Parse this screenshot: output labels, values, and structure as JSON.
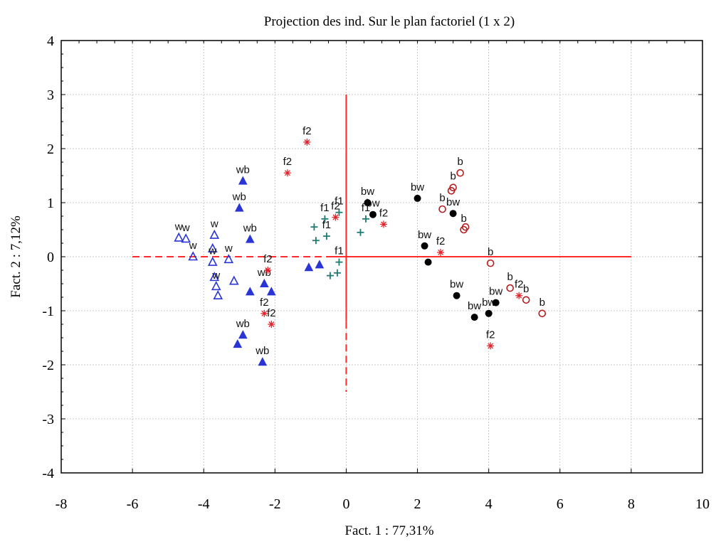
{
  "chart_data": {
    "type": "scatter",
    "title": "Projection des ind. Sur le plan factoriel (1 x 2)",
    "xlabel": "Fact. 1 : 77,31%",
    "ylabel": "Fact. 2 : 7,12%",
    "xlim": [
      -8,
      10
    ],
    "ylim": [
      -4,
      4
    ],
    "x_ticks": [
      "-8",
      "-6",
      "-4",
      "-2",
      "0",
      "2",
      "4",
      "6",
      "8",
      "10"
    ],
    "y_ticks": [
      "4",
      "3",
      "2",
      "1",
      "0",
      "-1",
      "-2",
      "-3",
      "-4"
    ],
    "grid": true,
    "legend": "none",
    "reference_lines": {
      "horizontal": {
        "y": 0,
        "x_from": -6,
        "x_to": 8,
        "dashed_left_of": -0.5,
        "color": "#ff2a2a"
      },
      "vertical": {
        "x": 0,
        "y_from": -2.5,
        "y_to": 3,
        "dashed_below": -1.2,
        "color": "#ff2a2a"
      }
    },
    "series": [
      {
        "marker": "triangle-outline",
        "color": "#2a35d6",
        "points": [
          {
            "x": -4.7,
            "y": 0.35,
            "label": "w"
          },
          {
            "x": -4.5,
            "y": 0.33,
            "label": "w"
          },
          {
            "x": -4.3,
            "y": 0.0,
            "label": "w"
          },
          {
            "x": -3.7,
            "y": 0.4,
            "label": "w"
          },
          {
            "x": -3.75,
            "y": 0.15,
            "label": ""
          },
          {
            "x": -3.75,
            "y": -0.1,
            "label": "w"
          },
          {
            "x": -3.3,
            "y": -0.05,
            "label": "w"
          },
          {
            "x": -3.7,
            "y": -0.38,
            "label": ""
          },
          {
            "x": -3.65,
            "y": -0.55,
            "label": "w"
          },
          {
            "x": -3.6,
            "y": -0.72,
            "label": ""
          },
          {
            "x": -3.15,
            "y": -0.45,
            "label": ""
          }
        ]
      },
      {
        "marker": "triangle-filled",
        "color": "#2a35d6",
        "points": [
          {
            "x": -2.9,
            "y": 1.4,
            "label": "wb"
          },
          {
            "x": -3.0,
            "y": 0.9,
            "label": "wb"
          },
          {
            "x": -2.7,
            "y": 0.32,
            "label": "wb"
          },
          {
            "x": -2.3,
            "y": -0.5,
            "label": "wb"
          },
          {
            "x": -2.7,
            "y": -0.65,
            "label": ""
          },
          {
            "x": -2.1,
            "y": -0.65,
            "label": ""
          },
          {
            "x": -2.9,
            "y": -1.45,
            "label": "wb"
          },
          {
            "x": -3.05,
            "y": -1.62,
            "label": ""
          },
          {
            "x": -2.35,
            "y": -1.95,
            "label": "wb"
          },
          {
            "x": -1.05,
            "y": -0.2,
            "label": ""
          },
          {
            "x": -0.75,
            "y": -0.15,
            "label": ""
          }
        ]
      },
      {
        "marker": "plus",
        "color": "#1f7a72",
        "points": [
          {
            "x": -0.2,
            "y": 0.82,
            "label": "f1"
          },
          {
            "x": -0.6,
            "y": 0.7,
            "label": "f1"
          },
          {
            "x": -0.9,
            "y": 0.55,
            "label": ""
          },
          {
            "x": -0.55,
            "y": 0.38,
            "label": "f1"
          },
          {
            "x": -0.85,
            "y": 0.3,
            "label": ""
          },
          {
            "x": 0.55,
            "y": 0.7,
            "label": "f1"
          },
          {
            "x": 0.4,
            "y": 0.45,
            "label": ""
          },
          {
            "x": -0.2,
            "y": -0.1,
            "label": "f1"
          },
          {
            "x": -0.45,
            "y": -0.35,
            "label": ""
          },
          {
            "x": -0.25,
            "y": -0.3,
            "label": ""
          }
        ]
      },
      {
        "marker": "asterisk",
        "color": "#e8202a",
        "points": [
          {
            "x": -1.1,
            "y": 2.12,
            "label": "f2"
          },
          {
            "x": -1.65,
            "y": 1.55,
            "label": "f2"
          },
          {
            "x": -0.3,
            "y": 0.73,
            "label": "f2"
          },
          {
            "x": 1.05,
            "y": 0.6,
            "label": "f2"
          },
          {
            "x": -2.2,
            "y": -0.25,
            "label": "f2"
          },
          {
            "x": -2.3,
            "y": -1.05,
            "label": "f2"
          },
          {
            "x": -2.1,
            "y": -1.25,
            "label": "f2"
          },
          {
            "x": 2.65,
            "y": 0.08,
            "label": "f2"
          },
          {
            "x": 4.85,
            "y": -0.72,
            "label": "f2"
          },
          {
            "x": 4.05,
            "y": -1.65,
            "label": "f2"
          }
        ]
      },
      {
        "marker": "circle-filled",
        "color": "#000000",
        "points": [
          {
            "x": 0.6,
            "y": 1.0,
            "label": "bw"
          },
          {
            "x": 0.75,
            "y": 0.78,
            "label": "bw"
          },
          {
            "x": 2.0,
            "y": 1.08,
            "label": "bw"
          },
          {
            "x": 3.0,
            "y": 0.8,
            "label": "bw"
          },
          {
            "x": 2.2,
            "y": 0.2,
            "label": "bw"
          },
          {
            "x": 2.3,
            "y": -0.1,
            "label": ""
          },
          {
            "x": 3.1,
            "y": -0.72,
            "label": "bw"
          },
          {
            "x": 3.6,
            "y": -1.12,
            "label": "bw"
          },
          {
            "x": 4.0,
            "y": -1.05,
            "label": "bw"
          },
          {
            "x": 4.2,
            "y": -0.85,
            "label": "bw"
          }
        ]
      },
      {
        "marker": "circle-outline",
        "color": "#b41e1e",
        "points": [
          {
            "x": 3.2,
            "y": 1.55,
            "label": "b"
          },
          {
            "x": 3.0,
            "y": 1.28,
            "label": "b"
          },
          {
            "x": 2.95,
            "y": 1.22,
            "label": ""
          },
          {
            "x": 2.7,
            "y": 0.88,
            "label": "b"
          },
          {
            "x": 3.3,
            "y": 0.5,
            "label": "b"
          },
          {
            "x": 3.35,
            "y": 0.55,
            "label": ""
          },
          {
            "x": 4.05,
            "y": -0.12,
            "label": "b"
          },
          {
            "x": 4.6,
            "y": -0.58,
            "label": "b"
          },
          {
            "x": 5.05,
            "y": -0.8,
            "label": "b"
          },
          {
            "x": 5.5,
            "y": -1.05,
            "label": "b"
          }
        ]
      }
    ]
  }
}
